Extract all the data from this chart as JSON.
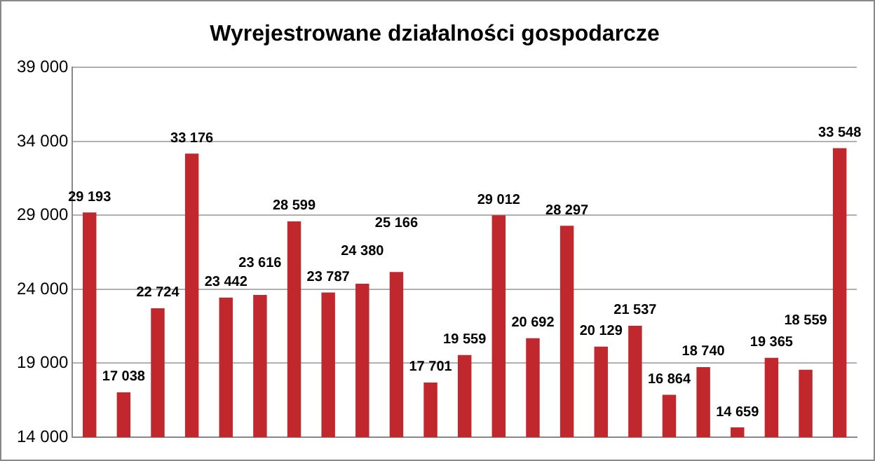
{
  "chart_data": {
    "type": "bar",
    "title": "Wyrejestrowane działalności gospodarcze",
    "categories": [
      null,
      null,
      null,
      null,
      null,
      null,
      null,
      null,
      null,
      null,
      null,
      null,
      null,
      null,
      null,
      null,
      null,
      null,
      null,
      null,
      null,
      null,
      null
    ],
    "values": [
      29193,
      17038,
      22724,
      33176,
      23442,
      23616,
      28599,
      23787,
      24380,
      25166,
      17701,
      19559,
      29012,
      20692,
      28297,
      20129,
      21537,
      16864,
      18740,
      14659,
      19365,
      18559,
      33548
    ],
    "value_labels": [
      "29 193",
      "17 038",
      "22 724",
      "33 176",
      "23 442",
      "23 616",
      "28 599",
      "23 787",
      "24 380",
      "25 166",
      "17 701",
      "19 559",
      "29 012",
      "20 692",
      "28 297",
      "20 129",
      "21 537",
      "16 864",
      "18 740",
      "14 659",
      "19 365",
      "18 559",
      "33 548"
    ],
    "color": "#c0282d",
    "ylim": [
      14000,
      39000
    ],
    "yticks": [
      {
        "value": 14000,
        "label": "14 000"
      },
      {
        "value": 19000,
        "label": "19 000"
      },
      {
        "value": 24000,
        "label": "24 000"
      },
      {
        "value": 29000,
        "label": "29 000"
      },
      {
        "value": 34000,
        "label": "34 000"
      },
      {
        "value": 39000,
        "label": "39 000"
      }
    ],
    "grid": "y",
    "legend": false
  }
}
